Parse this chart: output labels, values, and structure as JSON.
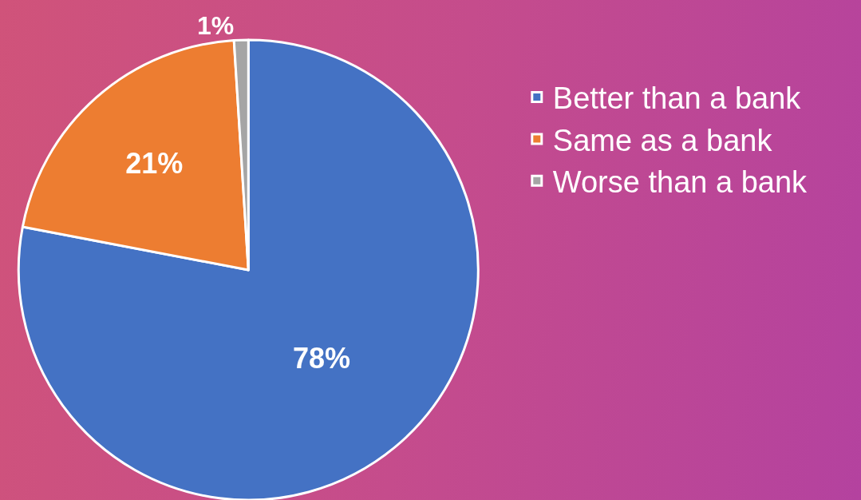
{
  "chart_data": {
    "type": "pie",
    "categories": [
      "Better than a bank",
      "Same as a bank",
      "Worse than a bank"
    ],
    "values": [
      78,
      21,
      1
    ],
    "value_labels": [
      "78%",
      "21%",
      "1%"
    ],
    "colors": [
      "#4472c4",
      "#ed7d31",
      "#a5a5a5"
    ],
    "legend": "right"
  }
}
